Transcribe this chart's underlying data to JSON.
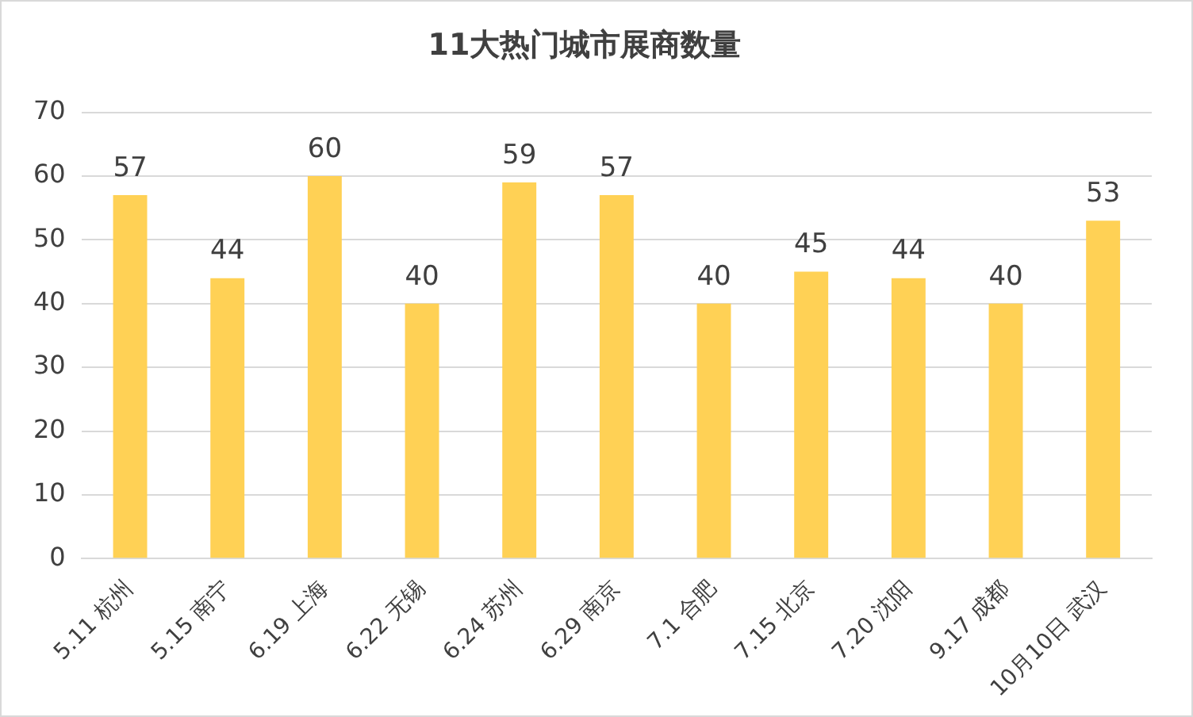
{
  "chart_data": {
    "type": "bar",
    "title": "11大热门城市展商数量",
    "categories": [
      "5.11 杭州",
      "5.15 南宁",
      "6.19 上海",
      "6.22 无锡",
      "6.24 苏州",
      "6.29 南京",
      "7.1 合肥",
      "7.15 北京",
      "7.20 沈阳",
      "9.17 成都",
      "10月10日 武汉"
    ],
    "values": [
      57,
      44,
      60,
      40,
      59,
      57,
      40,
      45,
      44,
      40,
      53
    ],
    "color": "#ffd155",
    "ylim": [
      0,
      70
    ],
    "yticks": [
      0,
      10,
      20,
      30,
      40,
      50,
      60,
      70
    ],
    "grid": "y",
    "data_labels": true,
    "legend": false
  }
}
